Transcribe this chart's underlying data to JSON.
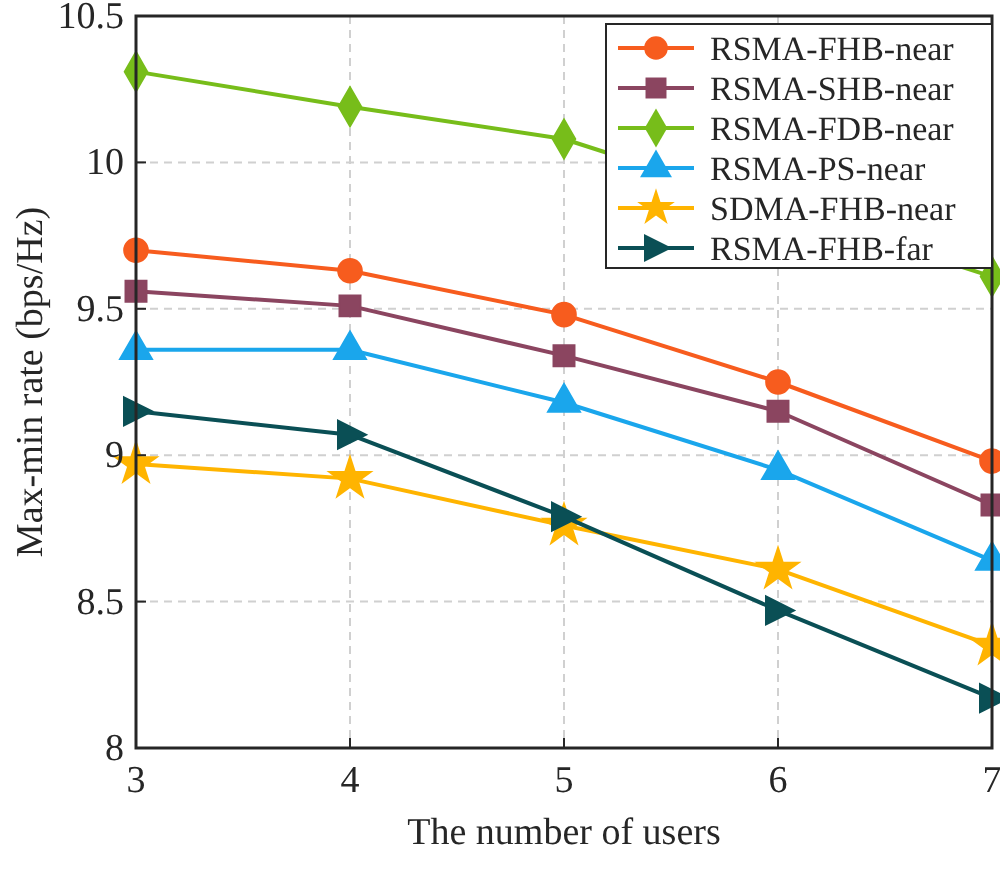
{
  "chart_data": {
    "type": "line",
    "xlabel": "The number of users",
    "ylabel": "Max-min rate (bps/Hz)",
    "x": [
      3,
      4,
      5,
      6,
      7
    ],
    "xlim": [
      3,
      7
    ],
    "xticks": [
      3,
      4,
      5,
      6,
      7
    ],
    "ylim": [
      8,
      10.5
    ],
    "yticks": [
      8,
      8.5,
      9,
      9.5,
      10,
      10.5
    ],
    "grid": true,
    "legend": "top right",
    "line_style": "solid",
    "series": [
      {
        "name": "RSMA-FHB-near",
        "color": "#f75c1e",
        "marker": "circle",
        "values": [
          9.7,
          9.63,
          9.48,
          9.25,
          8.98
        ]
      },
      {
        "name": "RSMA-SHB-near",
        "color": "#8b4560",
        "marker": "square",
        "values": [
          9.56,
          9.51,
          9.34,
          9.15,
          8.83
        ]
      },
      {
        "name": "RSMA-FDB-near",
        "color": "#77bd1a",
        "marker": "diamond",
        "values": [
          10.31,
          10.19,
          10.08,
          null,
          9.61
        ]
      },
      {
        "name": "RSMA-PS-near",
        "color": "#1aa6ec",
        "marker": "triangle",
        "values": [
          9.36,
          9.36,
          9.18,
          8.95,
          8.64
        ]
      },
      {
        "name": "SDMA-FHB-near",
        "color": "#ffb400",
        "marker": "star",
        "values": [
          8.97,
          8.92,
          8.76,
          8.61,
          8.35
        ]
      },
      {
        "name": "RSMA-FHB-far",
        "color": "#0a4f55",
        "marker": "triangle-right",
        "values": [
          9.15,
          9.07,
          8.79,
          8.47,
          8.17
        ]
      }
    ]
  }
}
